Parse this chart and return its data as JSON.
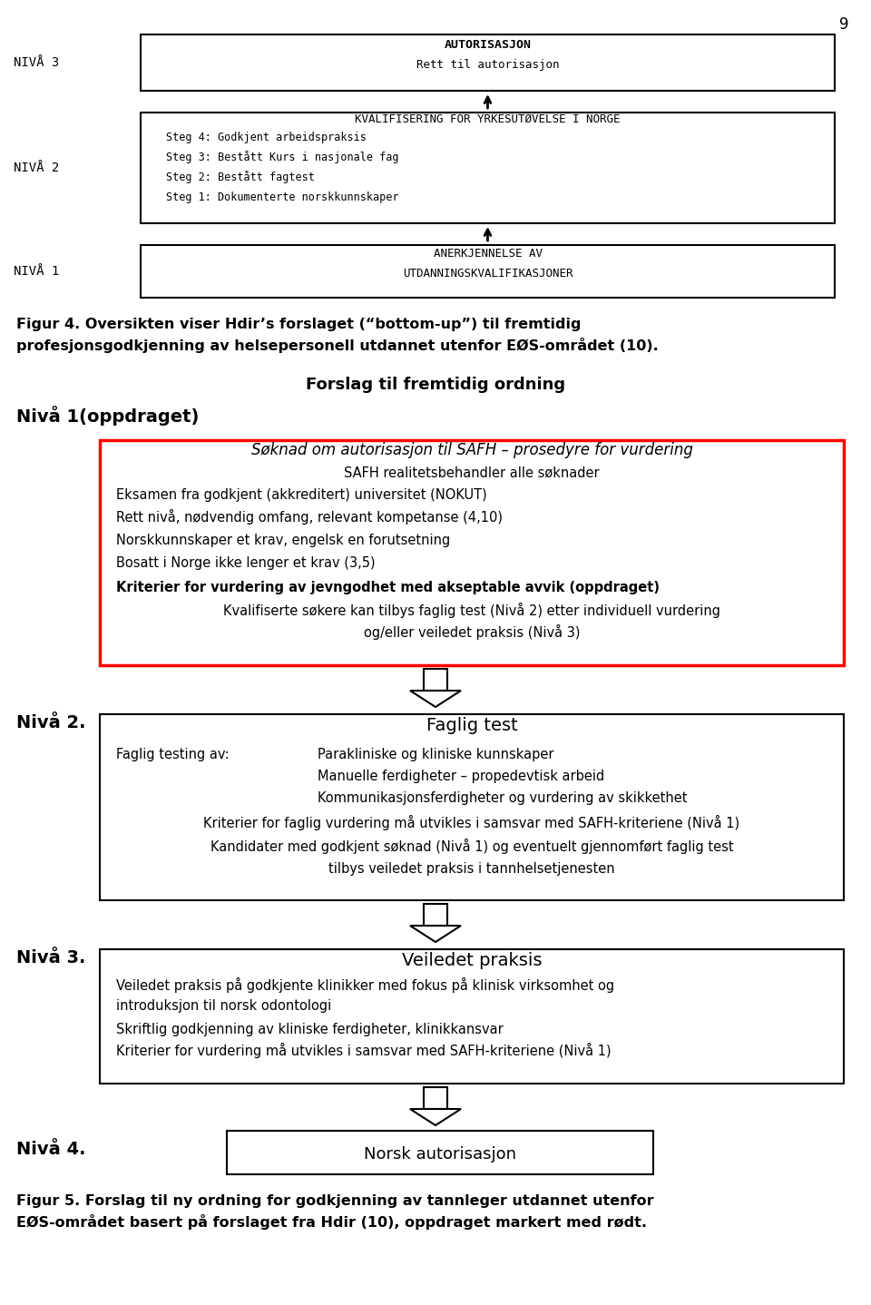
{
  "page_number": "9",
  "bg_color": "#ffffff",
  "top_diagram": {
    "niva3_label": "NIVÅ 3",
    "niva2_label": "NIVÅ 2",
    "niva1_label": "NIVÅ 1",
    "box3_line1": "AUTORISASJON",
    "box3_line2": "Rett til autorisasjon",
    "box2_title": "KVALIFISERING FOR YRKESUTØVELSE I NORGE",
    "box2_lines": [
      "Steg 4: Godkjent arbeidspraksis",
      "Steg 3: Bestått Kurs i nasjonale fag",
      "Steg 2: Bestått fagtest",
      "Steg 1: Dokumenterte norskkunnskaper"
    ],
    "box1_line1": "ANERKJENNELSE AV",
    "box1_line2": "UTDANNINGSKVALIFIKASJONER"
  },
  "figur4_line1": "Figur 4. Oversikten viser Hdir’s forslaget (“bottom-up”) til fremtidig",
  "figur4_line2": "profesjonsgodkjenning av helsepersonell utdannet utenfor EØS-området (10).",
  "section2_title": "Forslag til fremtidig ordning",
  "niva1_label2": "Nivå 1(oppdraget)",
  "red_box": {
    "line1": "Søknad om autorisasjon til SAFH – prosedyre for vurdering",
    "line2": "SAFH realitetsbehandler alle søknader",
    "line3": "Eksamen fra godkjent (akkreditert) universitet (NOKUT)",
    "line4": "Rett nivå, nødvendig omfang, relevant kompetanse (4,10)",
    "line5": "Norskkunnskaper et krav, engelsk en forutsetning",
    "line6": "Bosatt i Norge ikke lenger et krav (3,5)",
    "line7": "Kriterier for vurdering av jevngodhet med akseptable avvik (oppdraget)",
    "line8": "Kvalifiserte søkere kan tilbys faglig test (Nivå 2) etter individuell vurdering",
    "line9": "og/eller veiledet praksis (Nivå 3)"
  },
  "niva2_label2": "Nivå 2.",
  "faglig_box": {
    "title": "Faglig test",
    "line1_left": "Faglig testing av:",
    "line1_right": "Parakliniske og kliniske kunnskaper",
    "line2": "Manuelle ferdigheter – propedevtisk arbeid",
    "line3": "Kommunikasjonsferdigheter og vurdering av skikkethet",
    "line4": "Kriterier for faglig vurdering må utvikles i samsvar med SAFH-kriteriene (Nivå 1)",
    "line5": "Kandidater med godkjent søknad (Nivå 1) og eventuelt gjennomført faglig test",
    "line6": "tilbys veiledet praksis i tannhelsetjenesten"
  },
  "niva3_label2": "Nivå 3.",
  "veiledet_box": {
    "title": "Veiledet praksis",
    "line1": "Veiledet praksis på godkjente klinikker med fokus på klinisk virksomhet og",
    "line2": "introduksjon til norsk odontologi",
    "line3": "Skriftlig godkjenning av kliniske ferdigheter, klinikkansvar",
    "line4": "Kriterier for vurdering må utvikles i samsvar med SAFH-kriteriene (Nivå 1)"
  },
  "niva4_label2": "Nivå 4.",
  "norsk_box_title": "Norsk autorisasjon",
  "figur5_line1": "Figur 5. Forslag til ny ordning for godkjenning av tannleger utdannet utenfor",
  "figur5_line2": "EØS-området basert på forslaget fra Hdir (10), oppdraget markert med rødt."
}
